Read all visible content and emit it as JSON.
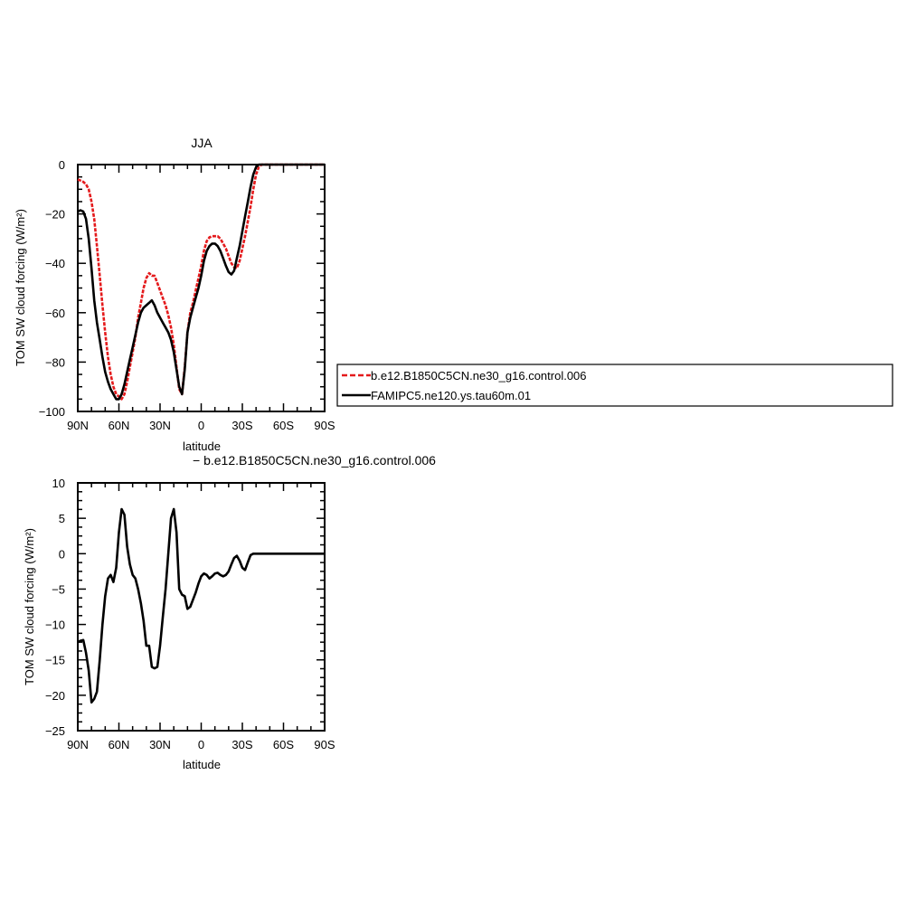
{
  "chart_data": [
    {
      "type": "line",
      "title": "JJA",
      "xlabel": "latitude",
      "ylabel": "TOM SW cloud forcing (W/m²)",
      "xlim": [
        90,
        -90
      ],
      "ylim": [
        -100,
        0
      ],
      "xticks": [
        90,
        60,
        30,
        0,
        -30,
        -60,
        -90
      ],
      "xticklabels": [
        "90N",
        "60N",
        "30N",
        "0",
        "30S",
        "60S",
        "90S"
      ],
      "yticks": [
        0,
        -20,
        -40,
        -60,
        -80,
        -100
      ],
      "yticklabels": [
        "0",
        "−20",
        "−40",
        "−60",
        "−80",
        "−100"
      ],
      "grid": false,
      "legend_position": "right of plot",
      "series": [
        {
          "name": "b.e12.B1850C5CN.ne30_g16.control.006",
          "color": "#e41a1c",
          "dash": "dashed",
          "x": [
            90,
            88,
            86,
            84,
            82,
            80,
            78,
            76,
            74,
            72,
            70,
            68,
            66,
            64,
            62,
            60,
            58,
            56,
            54,
            52,
            50,
            48,
            46,
            44,
            42,
            40,
            38,
            36,
            34,
            32,
            30,
            28,
            26,
            24,
            22,
            20,
            18,
            16,
            14,
            12,
            10,
            8,
            6,
            4,
            2,
            0,
            -2,
            -4,
            -6,
            -8,
            -10,
            -12,
            -14,
            -16,
            -18,
            -20,
            -22,
            -24,
            -26,
            -28,
            -30,
            -32,
            -34,
            -36,
            -38,
            -40,
            -42,
            -44,
            -46,
            -48,
            -50,
            -52,
            -54,
            -56,
            -58,
            -60,
            -62,
            -64,
            -66,
            -68,
            -70,
            -72,
            -74,
            -76,
            -78,
            -80,
            -82,
            -84,
            -86,
            -88,
            -90
          ],
          "y": [
            -6,
            -6.5,
            -7,
            -8,
            -10,
            -15,
            -22,
            -33,
            -45,
            -57,
            -68,
            -78,
            -85,
            -90,
            -93,
            -94,
            -95,
            -93,
            -88,
            -82,
            -76,
            -70,
            -62,
            -56,
            -50,
            -46,
            -44,
            -45,
            -45,
            -48,
            -51,
            -54,
            -57,
            -61,
            -66,
            -73,
            -82,
            -91,
            -93,
            -82,
            -68,
            -60,
            -56,
            -51,
            -46,
            -41,
            -35,
            -31,
            -29.5,
            -29,
            -29,
            -29,
            -30,
            -32,
            -34,
            -37,
            -40,
            -41.5,
            -42,
            -39,
            -34,
            -29,
            -23,
            -17,
            -10,
            -4,
            -1,
            0,
            0,
            0,
            0,
            0,
            0,
            0,
            0,
            0,
            0,
            0,
            0,
            0,
            0,
            0,
            0,
            0,
            0,
            0,
            0,
            0,
            0,
            0,
            0
          ]
        },
        {
          "name": "FAMIPC5.ne120.ys.tau60m.01",
          "color": "#000000",
          "dash": "solid",
          "x": [
            90,
            88,
            86,
            84,
            82,
            80,
            78,
            76,
            74,
            72,
            70,
            68,
            66,
            64,
            62,
            60,
            58,
            56,
            54,
            52,
            50,
            48,
            46,
            44,
            42,
            40,
            38,
            36,
            34,
            32,
            30,
            28,
            26,
            24,
            22,
            20,
            18,
            16,
            14,
            12,
            10,
            8,
            6,
            4,
            2,
            0,
            -2,
            -4,
            -6,
            -8,
            -10,
            -12,
            -14,
            -16,
            -18,
            -20,
            -22,
            -24,
            -26,
            -28,
            -30,
            -32,
            -34,
            -36,
            -38,
            -40,
            -42,
            -44,
            -46,
            -48,
            -50,
            -52,
            -54,
            -56,
            -58,
            -60,
            -62,
            -64,
            -66,
            -68,
            -70,
            -72,
            -74,
            -76,
            -78,
            -80,
            -82,
            -84,
            -86,
            -88,
            -90
          ],
          "y": [
            -19,
            -18.5,
            -19,
            -22,
            -30,
            -42,
            -55,
            -64,
            -71,
            -78,
            -84,
            -88,
            -91,
            -93,
            -95,
            -95,
            -93,
            -89,
            -84,
            -79,
            -74,
            -69,
            -64,
            -60,
            -58,
            -57,
            -56,
            -55,
            -57,
            -60,
            -62,
            -64,
            -66,
            -68,
            -71,
            -76,
            -83,
            -90,
            -93,
            -83,
            -68,
            -62,
            -58,
            -54,
            -50,
            -45,
            -39,
            -35,
            -33,
            -32,
            -32,
            -33,
            -35,
            -38,
            -41,
            -43.5,
            -44.5,
            -43,
            -38,
            -33,
            -27,
            -21,
            -15,
            -9,
            -4,
            -1,
            0,
            0,
            0,
            0,
            0,
            0,
            0,
            0,
            0,
            0,
            0,
            0,
            0,
            0,
            0,
            0,
            0,
            0,
            0,
            0,
            0,
            0,
            0,
            0,
            0
          ]
        }
      ]
    },
    {
      "type": "line",
      "title": "− b.e12.B1850C5CN.ne30_g16.control.006",
      "xlabel": "latitude",
      "ylabel": "TOM SW cloud forcing (W/m²)",
      "xlim": [
        90,
        -90
      ],
      "ylim": [
        -25,
        10
      ],
      "xticks": [
        90,
        60,
        30,
        0,
        -30,
        -60,
        -90
      ],
      "xticklabels": [
        "90N",
        "60N",
        "30N",
        "0",
        "30S",
        "60S",
        "90S"
      ],
      "yticks": [
        10,
        5,
        0,
        -5,
        -10,
        -15,
        -20,
        -25
      ],
      "yticklabels": [
        "10",
        "5",
        "0",
        "−5",
        "−10",
        "−15",
        "−20",
        "−25"
      ],
      "grid": false,
      "series": [
        {
          "color": "#000000",
          "dash": "solid",
          "x": [
            90,
            88,
            86,
            84,
            82,
            80,
            78,
            76,
            74,
            72,
            70,
            68,
            66,
            64,
            62,
            60,
            58,
            56,
            54,
            52,
            50,
            48,
            46,
            44,
            42,
            40,
            38,
            36,
            34,
            32,
            30,
            28,
            26,
            24,
            22,
            20,
            18,
            16,
            14,
            12,
            10,
            8,
            6,
            4,
            2,
            0,
            -2,
            -4,
            -6,
            -8,
            -10,
            -12,
            -14,
            -16,
            -18,
            -20,
            -22,
            -24,
            -26,
            -28,
            -30,
            -32,
            -34,
            -36,
            -38,
            -40,
            -42,
            -44,
            -46,
            -48,
            -50,
            -52,
            -54,
            -56,
            -58,
            -60,
            -62,
            -64,
            -66,
            -68,
            -70,
            -72,
            -74,
            -76,
            -78,
            -80,
            -82,
            -84,
            -86,
            -88,
            -90
          ],
          "y": [
            -12.5,
            -12.3,
            -12.2,
            -14,
            -16.5,
            -21,
            -20.5,
            -19.5,
            -15,
            -10,
            -6,
            -3.5,
            -3,
            -4,
            -2,
            3,
            6.3,
            5.5,
            1,
            -1.5,
            -3,
            -3.5,
            -5,
            -7,
            -9.5,
            -13,
            -13,
            -16,
            -16.2,
            -16,
            -13,
            -9,
            -5,
            0,
            5,
            6.3,
            3,
            -5,
            -5.8,
            -6,
            -7.8,
            -7.5,
            -6.5,
            -5.5,
            -4.2,
            -3.2,
            -2.8,
            -3,
            -3.5,
            -3.2,
            -2.8,
            -2.7,
            -3,
            -3.2,
            -3,
            -2.5,
            -1.5,
            -0.6,
            -0.3,
            -1,
            -2,
            -2.3,
            -1.2,
            -0.2,
            0,
            0,
            0,
            0,
            0,
            0,
            0,
            0,
            0,
            0,
            0,
            0,
            0,
            0,
            0,
            0,
            0,
            0,
            0,
            0,
            0,
            0,
            0,
            0,
            0,
            0,
            0
          ]
        }
      ]
    }
  ]
}
